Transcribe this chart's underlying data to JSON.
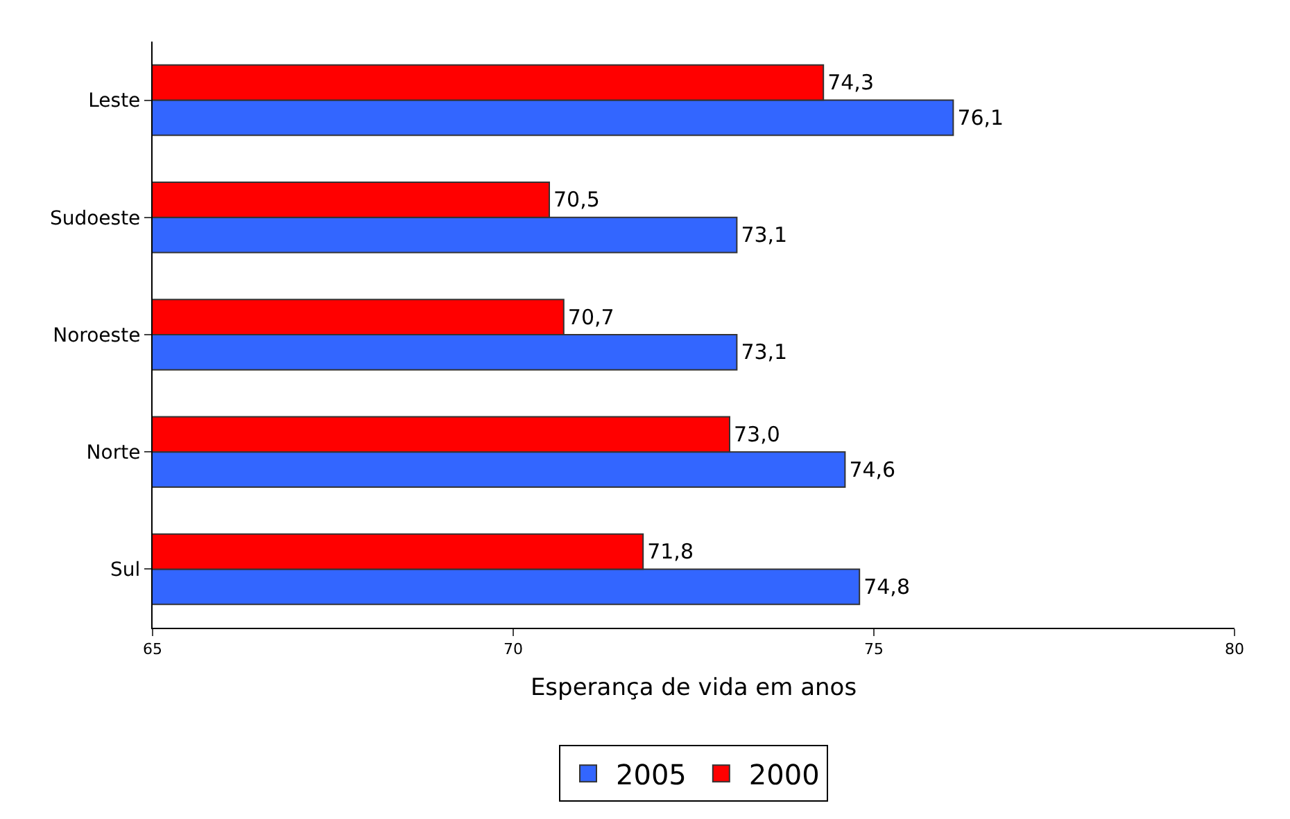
{
  "chart_data": {
    "type": "bar",
    "orientation": "horizontal",
    "xlabel": "Esperança de vida em anos",
    "categories": [
      "Leste",
      "Sudoeste",
      "Noroeste",
      "Norte",
      "Sul"
    ],
    "series": [
      {
        "name": "2005",
        "color": "#3366ff",
        "values": [
          76.1,
          73.1,
          73.1,
          74.6,
          74.8
        ],
        "value_labels": [
          "76,1",
          "73,1",
          "73,1",
          "74,6",
          "74,8"
        ]
      },
      {
        "name": "2000",
        "color": "#ff0000",
        "values": [
          74.3,
          70.5,
          70.7,
          73.0,
          71.8
        ],
        "value_labels": [
          "74,3",
          "70,5",
          "70,7",
          "73,0",
          "71,8"
        ]
      }
    ],
    "xlim": [
      65,
      80
    ],
    "xticks": [
      65,
      70,
      75,
      80
    ],
    "legend": "bottom"
  }
}
